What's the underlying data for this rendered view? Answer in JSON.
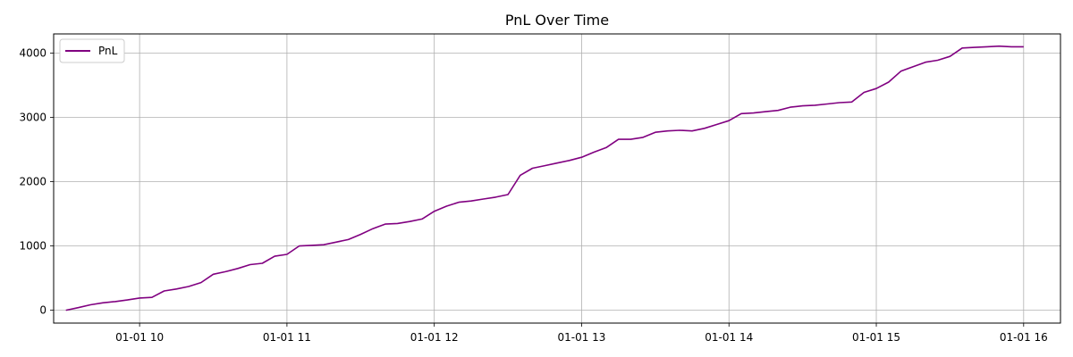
{
  "chart_data": {
    "type": "line",
    "title": "PnL Over Time",
    "xlabel": "",
    "ylabel": "",
    "x_unit": "time",
    "xlim": [
      "01-01 09:25",
      "01-01 16:15"
    ],
    "ylim": [
      -200,
      4300
    ],
    "x_ticks": [
      "01-01 10",
      "01-01 11",
      "01-01 12",
      "01-01 13",
      "01-01 14",
      "01-01 15",
      "01-01 16"
    ],
    "y_ticks": [
      0,
      1000,
      2000,
      3000,
      4000
    ],
    "grid": true,
    "legend": {
      "position": "top-left",
      "entries": [
        "PnL"
      ]
    },
    "series": [
      {
        "name": "PnL",
        "color": "#800080",
        "x": [
          "01-01 09:30",
          "01-01 09:35",
          "01-01 09:40",
          "01-01 09:45",
          "01-01 09:50",
          "01-01 09:55",
          "01-01 10:00",
          "01-01 10:05",
          "01-01 10:10",
          "01-01 10:15",
          "01-01 10:20",
          "01-01 10:25",
          "01-01 10:30",
          "01-01 10:35",
          "01-01 10:40",
          "01-01 10:45",
          "01-01 10:50",
          "01-01 10:55",
          "01-01 11:00",
          "01-01 11:05",
          "01-01 11:10",
          "01-01 11:15",
          "01-01 11:20",
          "01-01 11:25",
          "01-01 11:30",
          "01-01 11:35",
          "01-01 11:40",
          "01-01 11:45",
          "01-01 11:50",
          "01-01 11:55",
          "01-01 12:00",
          "01-01 12:05",
          "01-01 12:10",
          "01-01 12:15",
          "01-01 12:20",
          "01-01 12:25",
          "01-01 12:30",
          "01-01 12:35",
          "01-01 12:40",
          "01-01 12:45",
          "01-01 12:50",
          "01-01 12:55",
          "01-01 13:00",
          "01-01 13:05",
          "01-01 13:10",
          "01-01 13:15",
          "01-01 13:20",
          "01-01 13:25",
          "01-01 13:30",
          "01-01 13:35",
          "01-01 13:40",
          "01-01 13:45",
          "01-01 13:50",
          "01-01 13:55",
          "01-01 14:00",
          "01-01 14:05",
          "01-01 14:10",
          "01-01 14:15",
          "01-01 14:20",
          "01-01 14:25",
          "01-01 14:30",
          "01-01 14:35",
          "01-01 14:40",
          "01-01 14:45",
          "01-01 14:50",
          "01-01 14:55",
          "01-01 15:00",
          "01-01 15:05",
          "01-01 15:10",
          "01-01 15:15",
          "01-01 15:20",
          "01-01 15:25",
          "01-01 15:30",
          "01-01 15:35",
          "01-01 15:40",
          "01-01 15:45",
          "01-01 15:50",
          "01-01 15:55",
          "01-01 16:00"
        ],
        "values": [
          0,
          40,
          85,
          115,
          135,
          160,
          190,
          200,
          300,
          330,
          370,
          430,
          560,
          600,
          650,
          710,
          730,
          840,
          870,
          1000,
          1010,
          1020,
          1060,
          1100,
          1180,
          1270,
          1340,
          1350,
          1380,
          1420,
          1540,
          1620,
          1680,
          1700,
          1730,
          1760,
          1800,
          2100,
          2210,
          2250,
          2290,
          2330,
          2380,
          2460,
          2530,
          2660,
          2660,
          2690,
          2770,
          2790,
          2800,
          2790,
          2830,
          2890,
          2950,
          3060,
          3070,
          3090,
          3110,
          3160,
          3180,
          3190,
          3210,
          3230,
          3240,
          3390,
          3450,
          3550,
          3720,
          3790,
          3860,
          3890,
          3950,
          4080,
          4090,
          4100,
          4110,
          4100,
          4100
        ]
      }
    ]
  }
}
